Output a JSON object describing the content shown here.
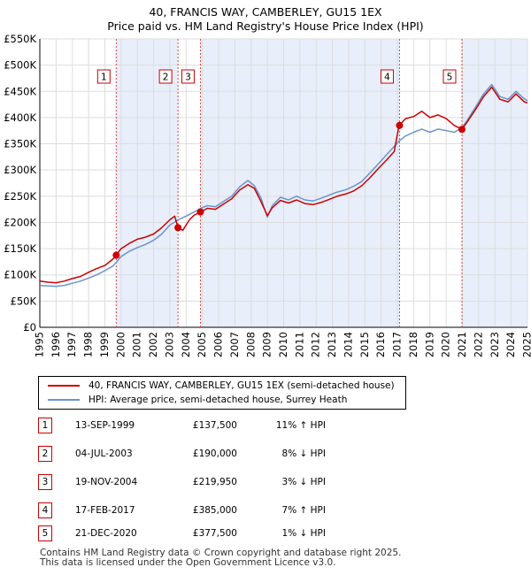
{
  "title_line1": "40, FRANCIS WAY, CAMBERLEY, GU15 1EX",
  "title_line2": "Price paid vs. HM Land Registry's House Price Index (HPI)",
  "legend": {
    "property_label": "40, FRANCIS WAY, CAMBERLEY, GU15 1EX (semi-detached house)",
    "hpi_label": "HPI: Average price, semi-detached house, Surrey Heath"
  },
  "transactions": [
    {
      "num": "1",
      "date": "13-SEP-1999",
      "price": "£137,500",
      "diff": "11% ↑ HPI"
    },
    {
      "num": "2",
      "date": "04-JUL-2003",
      "price": "£190,000",
      "diff": "8% ↓ HPI"
    },
    {
      "num": "3",
      "date": "19-NOV-2004",
      "price": "£219,950",
      "diff": "3% ↓ HPI"
    },
    {
      "num": "4",
      "date": "17-FEB-2017",
      "price": "£385,000",
      "diff": "7% ↑ HPI"
    },
    {
      "num": "5",
      "date": "21-DEC-2020",
      "price": "£377,500",
      "diff": "1% ↓ HPI"
    }
  ],
  "footer": {
    "line1": "Contains HM Land Registry data © Crown copyright and database right 2025.",
    "line2": "This data is licensed under the Open Government Licence v3.0."
  },
  "colors": {
    "property": "#cc0000",
    "hpi": "#6a94cc",
    "shade": "#e8eefa",
    "grid": "#dddddd",
    "marker_line": "#dd4444"
  },
  "chart_data": {
    "type": "line",
    "title": "40, FRANCIS WAY, CAMBERLEY, GU15 1EX",
    "subtitle": "Price paid vs. HM Land Registry's House Price Index (HPI)",
    "xlim": [
      1995,
      2025
    ],
    "ylim": [
      0,
      550000
    ],
    "x_ticks": [
      1995,
      1996,
      1997,
      1998,
      1999,
      2000,
      2001,
      2002,
      2003,
      2004,
      2005,
      2006,
      2007,
      2008,
      2009,
      2010,
      2011,
      2012,
      2013,
      2014,
      2015,
      2016,
      2017,
      2018,
      2019,
      2020,
      2021,
      2022,
      2023,
      2024,
      2025
    ],
    "y_ticks": [
      0,
      50000,
      100000,
      150000,
      200000,
      250000,
      300000,
      350000,
      400000,
      450000,
      500000,
      550000
    ],
    "y_tick_labels": [
      "£0",
      "£50K",
      "£100K",
      "£150K",
      "£200K",
      "£250K",
      "£300K",
      "£350K",
      "£400K",
      "£450K",
      "£500K",
      "£550K"
    ],
    "grid": true,
    "series": [
      {
        "name": "40, FRANCIS WAY, CAMBERLEY, GU15 1EX (semi-detached house)",
        "x": [
          1995.0,
          1995.5,
          1996.0,
          1996.5,
          1997.0,
          1997.5,
          1998.0,
          1998.5,
          1999.0,
          1999.5,
          1999.7,
          2000.0,
          2000.5,
          2001.0,
          2001.5,
          2002.0,
          2002.5,
          2003.0,
          2003.3,
          2003.5,
          2003.8,
          2004.2,
          2004.5,
          2004.9,
          2005.3,
          2005.8,
          2006.3,
          2006.8,
          2007.3,
          2007.8,
          2008.2,
          2008.6,
          2009.0,
          2009.3,
          2009.8,
          2010.3,
          2010.8,
          2011.3,
          2011.8,
          2012.3,
          2012.8,
          2013.3,
          2013.8,
          2014.3,
          2014.8,
          2015.3,
          2015.8,
          2016.3,
          2016.8,
          2017.1,
          2017.5,
          2018.0,
          2018.5,
          2019.0,
          2019.5,
          2020.0,
          2020.5,
          2020.97,
          2021.3,
          2021.8,
          2022.3,
          2022.8,
          2023.3,
          2023.8,
          2024.3,
          2024.8,
          2025.0
        ],
        "y": [
          88000,
          86000,
          85000,
          88000,
          93000,
          97000,
          105000,
          112000,
          118000,
          130000,
          137500,
          150000,
          160000,
          168000,
          172000,
          178000,
          190000,
          205000,
          212000,
          190000,
          185000,
          205000,
          214000,
          219950,
          227000,
          225000,
          235000,
          245000,
          262000,
          272000,
          265000,
          240000,
          213000,
          228000,
          242000,
          237000,
          243000,
          236000,
          234000,
          238000,
          244000,
          250000,
          254000,
          260000,
          270000,
          285000,
          302000,
          318000,
          335000,
          385000,
          398000,
          402000,
          412000,
          400000,
          405000,
          398000,
          385000,
          377500,
          392000,
          415000,
          440000,
          458000,
          435000,
          430000,
          445000,
          430000,
          428000
        ]
      },
      {
        "name": "HPI: Average price, semi-detached house, Surrey Heath",
        "x": [
          1995.0,
          1995.5,
          1996.0,
          1996.5,
          1997.0,
          1997.5,
          1998.0,
          1998.5,
          1999.0,
          1999.5,
          1999.7,
          2000.0,
          2000.5,
          2001.0,
          2001.5,
          2002.0,
          2002.5,
          2003.0,
          2003.5,
          2004.0,
          2004.5,
          2004.9,
          2005.3,
          2005.8,
          2006.3,
          2006.8,
          2007.3,
          2007.8,
          2008.2,
          2008.6,
          2009.0,
          2009.3,
          2009.8,
          2010.3,
          2010.8,
          2011.3,
          2011.8,
          2012.3,
          2012.8,
          2013.3,
          2013.8,
          2014.3,
          2014.8,
          2015.3,
          2015.8,
          2016.3,
          2016.8,
          2017.1,
          2017.5,
          2018.0,
          2018.5,
          2019.0,
          2019.5,
          2020.0,
          2020.5,
          2020.97,
          2021.3,
          2021.8,
          2022.3,
          2022.8,
          2023.3,
          2023.8,
          2024.3,
          2024.8,
          2025.0
        ],
        "y": [
          80000,
          79000,
          78000,
          80000,
          84000,
          88000,
          94000,
          100000,
          108000,
          117000,
          124000,
          135000,
          145000,
          152000,
          158000,
          166000,
          178000,
          195000,
          205000,
          212000,
          220000,
          227000,
          232000,
          230000,
          240000,
          250000,
          268000,
          280000,
          270000,
          247000,
          210000,
          232000,
          248000,
          243000,
          250000,
          243000,
          241000,
          246000,
          252000,
          258000,
          262000,
          269000,
          278000,
          294000,
          311000,
          328000,
          345000,
          355000,
          365000,
          372000,
          378000,
          372000,
          378000,
          375000,
          372000,
          381000,
          395000,
          420000,
          445000,
          463000,
          440000,
          435000,
          450000,
          436000,
          432000
        ]
      }
    ],
    "sales": [
      {
        "num": "1",
        "x": 1999.7,
        "y": 137500
      },
      {
        "num": "2",
        "x": 2003.5,
        "y": 190000
      },
      {
        "num": "3",
        "x": 2004.88,
        "y": 219950
      },
      {
        "num": "4",
        "x": 2017.13,
        "y": 385000
      },
      {
        "num": "5",
        "x": 2020.97,
        "y": 377500
      }
    ]
  }
}
